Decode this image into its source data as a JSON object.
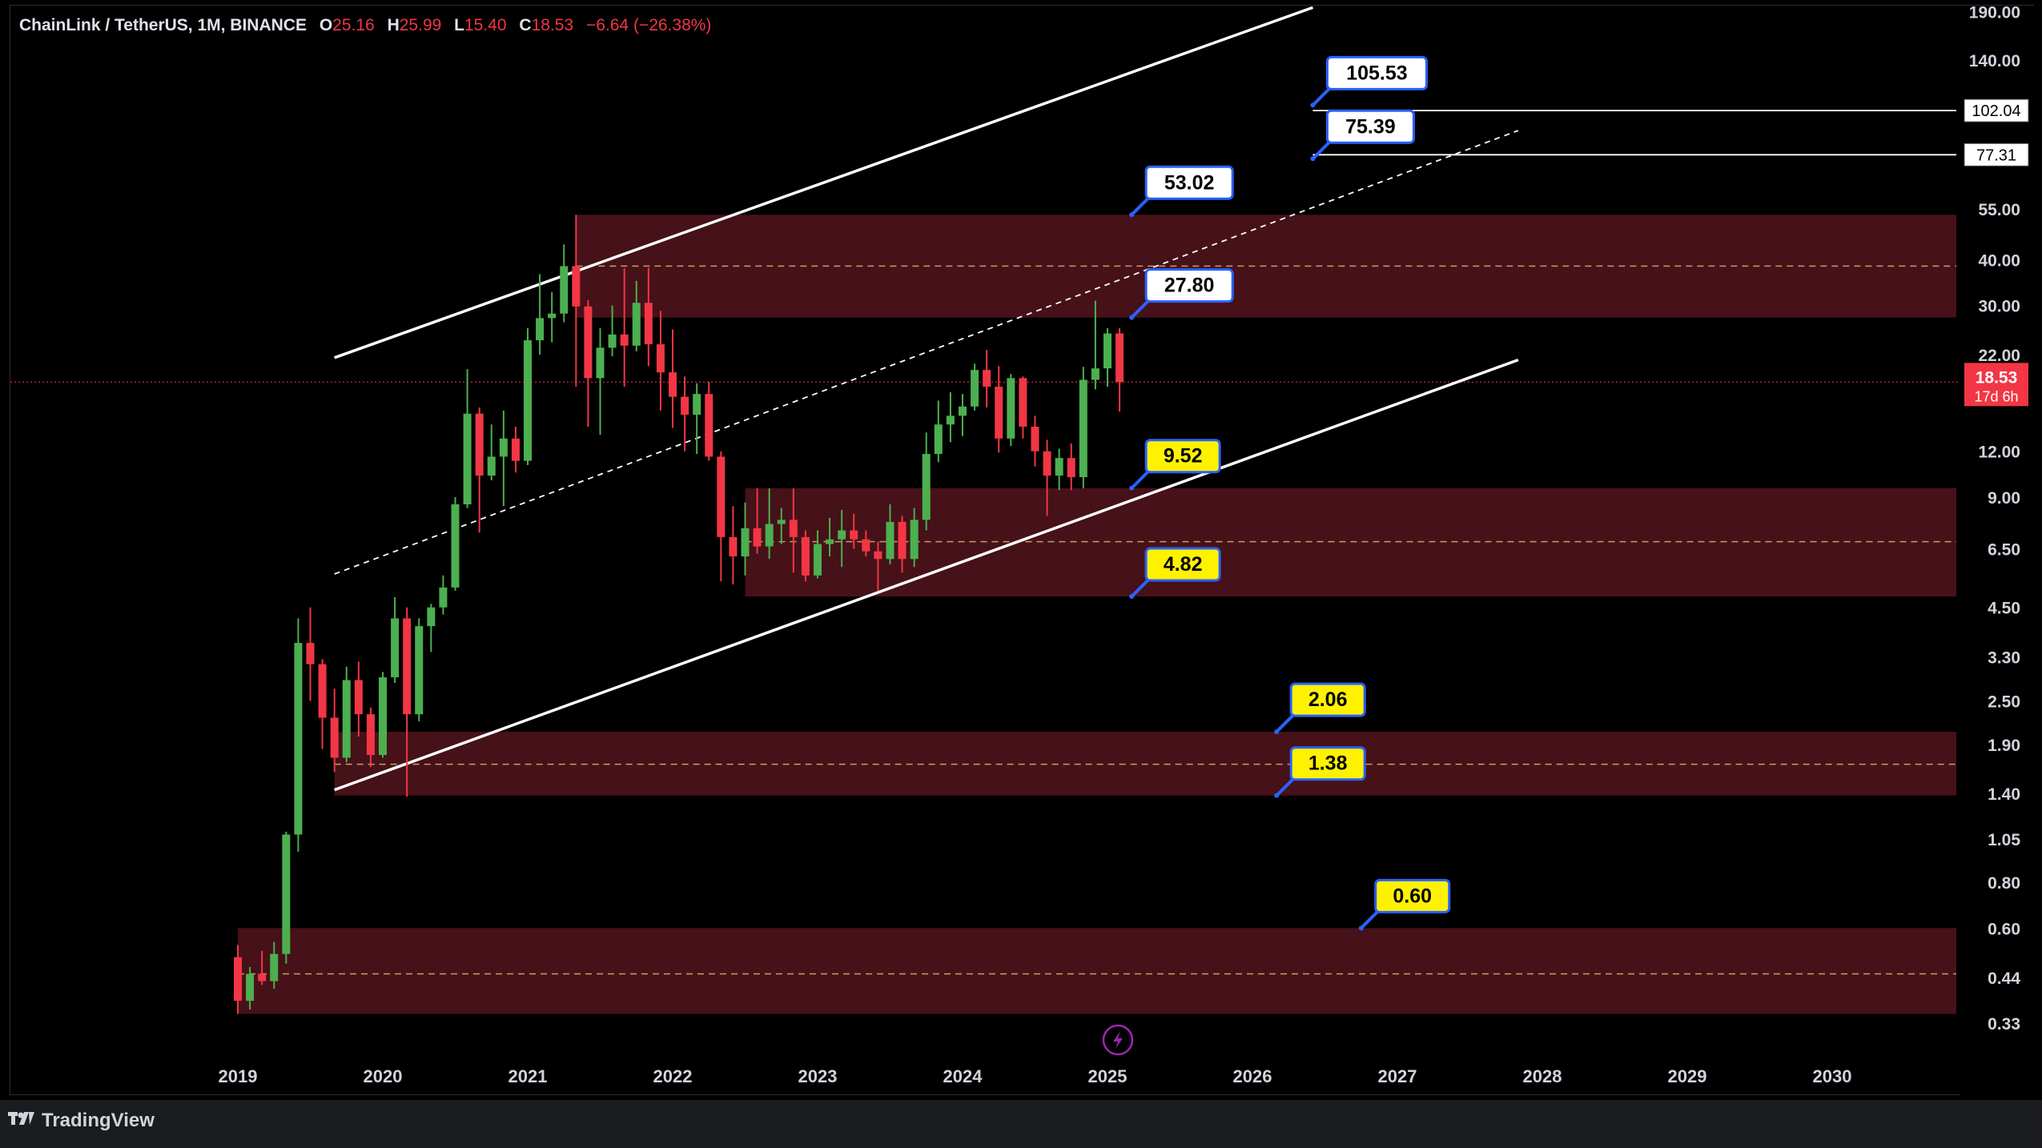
{
  "header": {
    "symbol": "ChainLink / TetherUS, 1M, BINANCE",
    "o_label": "O",
    "o_value": "25.16",
    "h_label": "H",
    "h_value": "25.99",
    "l_label": "L",
    "l_value": "15.40",
    "c_label": "C",
    "c_value": "18.53",
    "change": "−6.64 (−26.38%)"
  },
  "branding": {
    "logo_text": "TradingView",
    "logo_icon": "tradingview-logo-icon"
  },
  "colors": {
    "up": "#26a69a",
    "up_bright": "#4caf50",
    "down": "#f23645",
    "zone": "#4a1219",
    "price_badge": "#f23645",
    "label_yellow": "#fff200",
    "label_white": "#ffffff",
    "label_border": "#2962ff"
  },
  "chart_data": {
    "type": "candlestick",
    "scale": "log",
    "y_ticks": [
      "190.00",
      "140.00",
      "55.00",
      "40.00",
      "30.00",
      "22.00",
      "12.00",
      "9.00",
      "6.50",
      "4.50",
      "3.30",
      "2.50",
      "1.90",
      "1.40",
      "1.05",
      "0.80",
      "0.60",
      "0.44",
      "0.33"
    ],
    "x_ticks": [
      "2019",
      "2020",
      "2021",
      "2022",
      "2023",
      "2024",
      "2025",
      "2026",
      "2027",
      "2028",
      "2029",
      "2030"
    ],
    "current_price": {
      "value": "18.53",
      "countdown": "17d 6h"
    },
    "horizontal_lines": [
      {
        "value": 102.04,
        "label": "102.04"
      },
      {
        "value": 77.31,
        "label": "77.31"
      }
    ],
    "zones": [
      {
        "top": 53.02,
        "bottom": 27.8,
        "mid": 38.4,
        "from": "2021-05",
        "to": "2030-08"
      },
      {
        "top": 9.52,
        "bottom": 4.82,
        "mid": 6.8,
        "from": "2022-07",
        "to": "2030-08"
      },
      {
        "top": 2.06,
        "bottom": 1.38,
        "mid": 1.68,
        "from": "2019-09",
        "to": "2030-08"
      },
      {
        "top": 0.6,
        "bottom": 0.35,
        "mid": 0.45,
        "from": "2019-01",
        "to": "2030-08"
      }
    ],
    "channel": {
      "upper": [
        {
          "t": "2019-09",
          "v": 21.6
        },
        {
          "t": "2026-06",
          "v": 195
        }
      ],
      "middle": [
        {
          "t": "2019-09",
          "v": 5.55
        },
        {
          "t": "2027-11",
          "v": 90
        }
      ],
      "lower": [
        {
          "t": "2019-09",
          "v": 1.43
        },
        {
          "t": "2027-11",
          "v": 21.3
        }
      ]
    },
    "labels": [
      {
        "text": "105.53",
        "style": "white",
        "value": 105.53,
        "t": "2026-06"
      },
      {
        "text": "75.39",
        "style": "white",
        "value": 75.39,
        "t": "2026-06"
      },
      {
        "text": "53.02",
        "style": "white",
        "value": 53.02,
        "t": "2025-03"
      },
      {
        "text": "27.80",
        "style": "white",
        "value": 27.8,
        "t": "2025-03"
      },
      {
        "text": "9.52",
        "style": "yellow",
        "value": 9.52,
        "t": "2025-03"
      },
      {
        "text": "4.82",
        "style": "yellow",
        "value": 4.82,
        "t": "2025-03"
      },
      {
        "text": "2.06",
        "style": "yellow",
        "value": 2.06,
        "t": "2026-03"
      },
      {
        "text": "1.38",
        "style": "yellow",
        "value": 1.38,
        "t": "2026-03"
      },
      {
        "text": "0.60",
        "style": "yellow",
        "value": 0.6,
        "t": "2026-10"
      }
    ],
    "candles": [
      {
        "t": "2019-01",
        "o": 0.5,
        "h": 0.54,
        "l": 0.35,
        "c": 0.38
      },
      {
        "t": "2019-02",
        "o": 0.38,
        "h": 0.47,
        "l": 0.36,
        "c": 0.45
      },
      {
        "t": "2019-03",
        "o": 0.45,
        "h": 0.52,
        "l": 0.42,
        "c": 0.43
      },
      {
        "t": "2019-04",
        "o": 0.43,
        "h": 0.55,
        "l": 0.41,
        "c": 0.51
      },
      {
        "t": "2019-05",
        "o": 0.51,
        "h": 1.1,
        "l": 0.48,
        "c": 1.08
      },
      {
        "t": "2019-06",
        "o": 1.08,
        "h": 4.2,
        "l": 0.97,
        "c": 3.6
      },
      {
        "t": "2019-07",
        "o": 3.6,
        "h": 4.5,
        "l": 2.5,
        "c": 3.15
      },
      {
        "t": "2019-08",
        "o": 3.15,
        "h": 3.25,
        "l": 1.85,
        "c": 2.25
      },
      {
        "t": "2019-09",
        "o": 2.25,
        "h": 2.7,
        "l": 1.6,
        "c": 1.75
      },
      {
        "t": "2019-10",
        "o": 1.75,
        "h": 3.1,
        "l": 1.7,
        "c": 2.85
      },
      {
        "t": "2019-11",
        "o": 2.85,
        "h": 3.2,
        "l": 2.0,
        "c": 2.3
      },
      {
        "t": "2019-12",
        "o": 2.3,
        "h": 2.4,
        "l": 1.65,
        "c": 1.78
      },
      {
        "t": "2020-01",
        "o": 1.78,
        "h": 3.0,
        "l": 1.75,
        "c": 2.9
      },
      {
        "t": "2020-02",
        "o": 2.9,
        "h": 4.8,
        "l": 2.8,
        "c": 4.2
      },
      {
        "t": "2020-03",
        "o": 4.2,
        "h": 4.5,
        "l": 1.37,
        "c": 2.3
      },
      {
        "t": "2020-04",
        "o": 2.3,
        "h": 4.2,
        "l": 2.2,
        "c": 4.0
      },
      {
        "t": "2020-05",
        "o": 4.0,
        "h": 4.6,
        "l": 3.4,
        "c": 4.5
      },
      {
        "t": "2020-06",
        "o": 4.5,
        "h": 5.5,
        "l": 4.3,
        "c": 5.1
      },
      {
        "t": "2020-07",
        "o": 5.1,
        "h": 9.0,
        "l": 5.0,
        "c": 8.6
      },
      {
        "t": "2020-08",
        "o": 8.6,
        "h": 20.1,
        "l": 8.4,
        "c": 15.2
      },
      {
        "t": "2020-09",
        "o": 15.2,
        "h": 15.8,
        "l": 7.2,
        "c": 10.3
      },
      {
        "t": "2020-10",
        "o": 10.3,
        "h": 14.2,
        "l": 10.0,
        "c": 11.6
      },
      {
        "t": "2020-11",
        "o": 11.6,
        "h": 15.5,
        "l": 8.5,
        "c": 13.0
      },
      {
        "t": "2020-12",
        "o": 13.0,
        "h": 14.0,
        "l": 10.5,
        "c": 11.3
      },
      {
        "t": "2021-01",
        "o": 11.3,
        "h": 26.0,
        "l": 11.0,
        "c": 24.1
      },
      {
        "t": "2021-02",
        "o": 24.1,
        "h": 36.5,
        "l": 22.0,
        "c": 27.7
      },
      {
        "t": "2021-03",
        "o": 27.7,
        "h": 32.6,
        "l": 23.8,
        "c": 28.5
      },
      {
        "t": "2021-04",
        "o": 28.5,
        "h": 44.0,
        "l": 27.0,
        "c": 38.4
      },
      {
        "t": "2021-05",
        "o": 38.4,
        "h": 53.0,
        "l": 18.0,
        "c": 29.8
      },
      {
        "t": "2021-06",
        "o": 29.8,
        "h": 31.0,
        "l": 14.0,
        "c": 19.0
      },
      {
        "t": "2021-07",
        "o": 19.0,
        "h": 26.0,
        "l": 13.3,
        "c": 23.0
      },
      {
        "t": "2021-08",
        "o": 23.0,
        "h": 30.0,
        "l": 21.8,
        "c": 25.0
      },
      {
        "t": "2021-09",
        "o": 25.0,
        "h": 37.9,
        "l": 18.0,
        "c": 23.3
      },
      {
        "t": "2021-10",
        "o": 23.3,
        "h": 35.0,
        "l": 22.5,
        "c": 30.5
      },
      {
        "t": "2021-11",
        "o": 30.5,
        "h": 38.0,
        "l": 20.5,
        "c": 23.5
      },
      {
        "t": "2021-12",
        "o": 23.5,
        "h": 29.0,
        "l": 15.5,
        "c": 19.7
      },
      {
        "t": "2022-01",
        "o": 19.7,
        "h": 25.8,
        "l": 13.9,
        "c": 16.9
      },
      {
        "t": "2022-02",
        "o": 16.9,
        "h": 19.2,
        "l": 12.0,
        "c": 15.1
      },
      {
        "t": "2022-03",
        "o": 15.1,
        "h": 18.4,
        "l": 11.8,
        "c": 17.2
      },
      {
        "t": "2022-04",
        "o": 17.2,
        "h": 18.6,
        "l": 11.3,
        "c": 11.6
      },
      {
        "t": "2022-05",
        "o": 11.6,
        "h": 12.0,
        "l": 5.3,
        "c": 7.0
      },
      {
        "t": "2022-06",
        "o": 7.0,
        "h": 8.5,
        "l": 5.2,
        "c": 6.2
      },
      {
        "t": "2022-07",
        "o": 6.2,
        "h": 8.7,
        "l": 5.5,
        "c": 7.4
      },
      {
        "t": "2022-08",
        "o": 7.4,
        "h": 9.5,
        "l": 6.3,
        "c": 6.6
      },
      {
        "t": "2022-09",
        "o": 6.6,
        "h": 9.5,
        "l": 6.1,
        "c": 7.6
      },
      {
        "t": "2022-10",
        "o": 7.6,
        "h": 8.4,
        "l": 6.7,
        "c": 7.8
      },
      {
        "t": "2022-11",
        "o": 7.8,
        "h": 9.5,
        "l": 5.6,
        "c": 7.0
      },
      {
        "t": "2022-12",
        "o": 7.0,
        "h": 7.3,
        "l": 5.3,
        "c": 5.5
      },
      {
        "t": "2023-01",
        "o": 5.5,
        "h": 7.3,
        "l": 5.4,
        "c": 6.7
      },
      {
        "t": "2023-02",
        "o": 6.7,
        "h": 7.9,
        "l": 6.2,
        "c": 6.9
      },
      {
        "t": "2023-03",
        "o": 6.9,
        "h": 8.3,
        "l": 5.8,
        "c": 7.3
      },
      {
        "t": "2023-04",
        "o": 7.3,
        "h": 8.1,
        "l": 6.5,
        "c": 6.9
      },
      {
        "t": "2023-05",
        "o": 6.9,
        "h": 7.3,
        "l": 6.2,
        "c": 6.4
      },
      {
        "t": "2023-06",
        "o": 6.4,
        "h": 6.8,
        "l": 5.0,
        "c": 6.1
      },
      {
        "t": "2023-07",
        "o": 6.1,
        "h": 8.6,
        "l": 5.9,
        "c": 7.7
      },
      {
        "t": "2023-08",
        "o": 7.7,
        "h": 8.0,
        "l": 5.6,
        "c": 6.1
      },
      {
        "t": "2023-09",
        "o": 6.1,
        "h": 8.4,
        "l": 5.8,
        "c": 7.8
      },
      {
        "t": "2023-10",
        "o": 7.8,
        "h": 13.5,
        "l": 7.3,
        "c": 11.8
      },
      {
        "t": "2023-11",
        "o": 11.8,
        "h": 16.5,
        "l": 11.2,
        "c": 14.2
      },
      {
        "t": "2023-12",
        "o": 14.2,
        "h": 17.4,
        "l": 12.7,
        "c": 15.0
      },
      {
        "t": "2024-01",
        "o": 15.0,
        "h": 17.2,
        "l": 13.2,
        "c": 15.9
      },
      {
        "t": "2024-02",
        "o": 15.9,
        "h": 20.8,
        "l": 15.5,
        "c": 20.0
      },
      {
        "t": "2024-03",
        "o": 20.0,
        "h": 22.7,
        "l": 15.8,
        "c": 18.0
      },
      {
        "t": "2024-04",
        "o": 18.0,
        "h": 20.5,
        "l": 11.9,
        "c": 13.0
      },
      {
        "t": "2024-05",
        "o": 13.0,
        "h": 19.5,
        "l": 12.4,
        "c": 19.0
      },
      {
        "t": "2024-06",
        "o": 19.0,
        "h": 19.2,
        "l": 13.0,
        "c": 14.0
      },
      {
        "t": "2024-07",
        "o": 14.0,
        "h": 15.0,
        "l": 10.9,
        "c": 12.0
      },
      {
        "t": "2024-08",
        "o": 12.0,
        "h": 12.9,
        "l": 8.0,
        "c": 10.3
      },
      {
        "t": "2024-09",
        "o": 10.3,
        "h": 12.2,
        "l": 9.4,
        "c": 11.5
      },
      {
        "t": "2024-10",
        "o": 11.5,
        "h": 12.6,
        "l": 9.4,
        "c": 10.2
      },
      {
        "t": "2024-11",
        "o": 10.2,
        "h": 20.4,
        "l": 9.5,
        "c": 18.8
      },
      {
        "t": "2024-12",
        "o": 18.8,
        "h": 30.9,
        "l": 17.7,
        "c": 20.2
      },
      {
        "t": "2025-01",
        "o": 20.2,
        "h": 26.0,
        "l": 18.0,
        "c": 25.16
      },
      {
        "t": "2025-02",
        "o": 25.16,
        "h": 25.99,
        "l": 15.4,
        "c": 18.53
      }
    ]
  }
}
